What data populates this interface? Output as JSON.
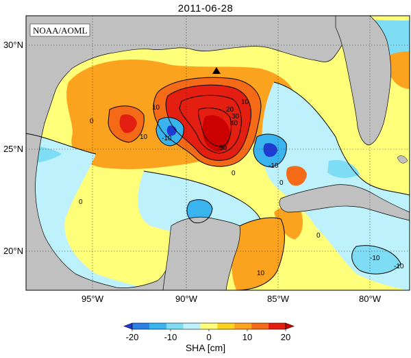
{
  "title": "2011-06-28",
  "credit": "NOAA/AOML",
  "lat_labels": [
    "30°N",
    "25°N",
    "20°N"
  ],
  "lon_labels": [
    "95°W",
    "90°W",
    "85°W",
    "80°W"
  ],
  "contour_labels": [
    "10",
    "10",
    "0",
    "20",
    "30",
    "40",
    "50",
    "10",
    "-10",
    "-10",
    "0",
    "0",
    "0",
    "10",
    "-10",
    "-10",
    "0"
  ],
  "colorbar": {
    "title": "SHA [cm]",
    "ticks": [
      "-20",
      "-10",
      "0",
      "10",
      "20"
    ],
    "colors": [
      "#1e3cd2",
      "#2e7fe6",
      "#39b4ef",
      "#7fdcf5",
      "#bdf1fb",
      "#ffff7a",
      "#ffd21e",
      "#fba21e",
      "#f46a16",
      "#e41e10",
      "#cc0000"
    ]
  },
  "colors": {
    "land": "#c0c0c0",
    "ocean_base": "#ffff7a",
    "marker": "#000000"
  },
  "marker_icon": "triangle-marker-icon"
}
